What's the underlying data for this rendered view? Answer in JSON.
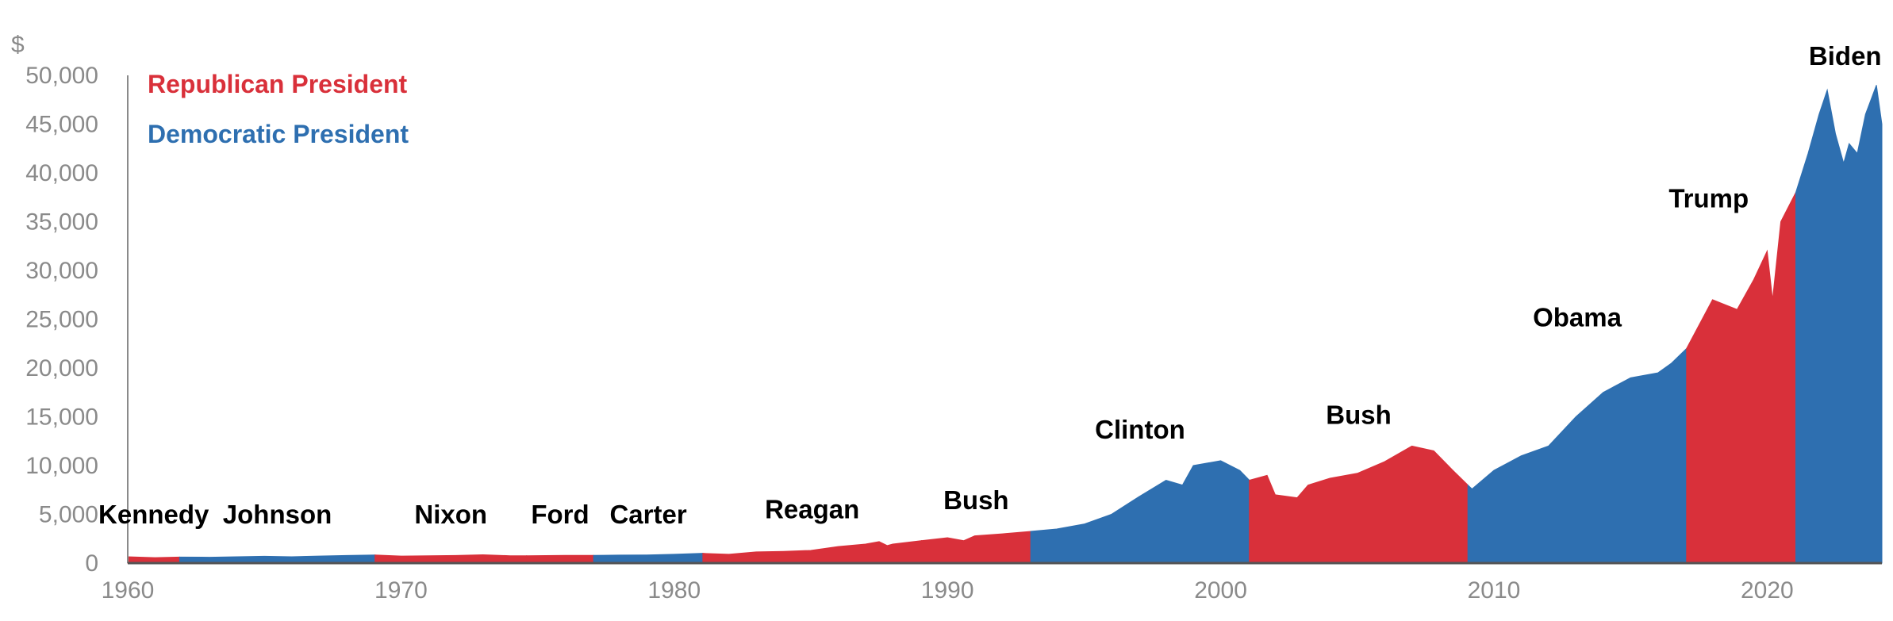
{
  "chart_data": {
    "type": "area",
    "title": "",
    "ylabel": "$",
    "xlabel": "",
    "xlim": [
      1960,
      2024.2
    ],
    "ylim": [
      0,
      50000
    ],
    "x_ticks": [
      "1960",
      "1970",
      "1980",
      "1990",
      "2000",
      "2010",
      "2020"
    ],
    "y_ticks": [
      "0",
      "5,000",
      "10,000",
      "15,000",
      "20,000",
      "25,000",
      "30,000",
      "35,000",
      "40,000",
      "45,000",
      "50,000"
    ],
    "legend": {
      "position": "top-left",
      "entries": [
        {
          "label": "Republican President",
          "party": "R",
          "color": "#d9303a"
        },
        {
          "label": "Democratic President",
          "party": "D",
          "color": "#2e6fb0"
        }
      ]
    },
    "colors": {
      "R": "#d9303a",
      "D": "#2e6fb0",
      "axis": "#8a8a8a",
      "text": "#000000"
    },
    "terms": [
      {
        "name": "Kennedy",
        "party": "R",
        "start": 1960,
        "end": 1961.9
      },
      {
        "name": "Johnson",
        "party": "D",
        "start": 1961.9,
        "end": 1969.05
      },
      {
        "name": "Nixon",
        "party": "R",
        "start": 1969.05,
        "end": 1974.6
      },
      {
        "name": "Ford",
        "party": "R",
        "start": 1974.6,
        "end": 1977.05
      },
      {
        "name": "Carter",
        "party": "D",
        "start": 1977.05,
        "end": 1981.05
      },
      {
        "name": "Reagan",
        "party": "R",
        "start": 1981.05,
        "end": 1989.05
      },
      {
        "name": "Bush",
        "party": "R",
        "start": 1989.05,
        "end": 1993.05
      },
      {
        "name": "Clinton",
        "party": "D",
        "start": 1993.05,
        "end": 2001.05
      },
      {
        "name": "Bush",
        "party": "R",
        "start": 2001.05,
        "end": 2009.05
      },
      {
        "name": "Obama",
        "party": "D",
        "start": 2009.05,
        "end": 2017.05
      },
      {
        "name": "Trump",
        "party": "R",
        "start": 2017.05,
        "end": 2021.05
      },
      {
        "name": "Biden",
        "party": "D",
        "start": 2021.05,
        "end": 2024.2
      }
    ],
    "series": [
      {
        "x": [
          1960,
          1961,
          1961.9,
          1963,
          1965,
          1966,
          1967,
          1968,
          1969.05,
          1970,
          1972,
          1973,
          1974,
          1974.6,
          1976,
          1977.05,
          1978,
          1979,
          1980,
          1981.05,
          1982,
          1983,
          1984,
          1985,
          1986,
          1987,
          1987.5,
          1987.8,
          1988,
          1989.05,
          1990,
          1990.6,
          1991,
          1992,
          1993.05,
          1994,
          1995,
          1996,
          1997,
          1998,
          1998.6,
          1999,
          2000,
          2000.7,
          2001.05,
          2001.7,
          2002,
          2002.8,
          2003.2,
          2004,
          2005,
          2006,
          2007,
          2007.8,
          2008.5,
          2009.05,
          2009.2,
          2010,
          2011,
          2012,
          2013,
          2014,
          2015,
          2016,
          2016.5,
          2017.05,
          2018,
          2018.9,
          2019.5,
          2020,
          2020.2,
          2020.5,
          2021.05,
          2021.5,
          2021.9,
          2022.2,
          2022.5,
          2022.8,
          2023,
          2023.3,
          2023.6,
          2024,
          2024.2
        ],
        "values": [
          650,
          560,
          620,
          600,
          700,
          650,
          720,
          780,
          830,
          720,
          780,
          850,
          760,
          750,
          800,
          800,
          820,
          840,
          900,
          1000,
          900,
          1150,
          1200,
          1300,
          1700,
          1950,
          2200,
          1800,
          1950,
          2300,
          2600,
          2300,
          2800,
          3000,
          3250,
          3500,
          4000,
          5000,
          6800,
          8500,
          8000,
          10000,
          10500,
          9500,
          8500,
          9000,
          7000,
          6700,
          8000,
          8700,
          9200,
          10400,
          12000,
          11500,
          9500,
          8000,
          7600,
          9500,
          11000,
          12000,
          15000,
          17500,
          19000,
          19500,
          20500,
          22000,
          27000,
          26000,
          29000,
          32000,
          27000,
          35000,
          38000,
          42000,
          46000,
          48500,
          44000,
          41000,
          43000,
          42000,
          46000,
          49000,
          45000
        ]
      }
    ]
  }
}
